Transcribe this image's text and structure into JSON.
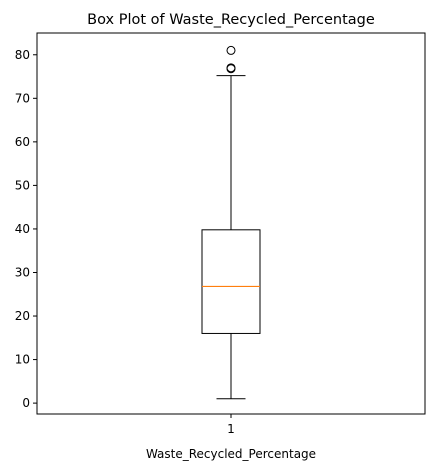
{
  "chart_data": {
    "type": "box",
    "title": "Box Plot of Waste_Recycled_Percentage",
    "xlabel": "Waste_Recycled_Percentage",
    "ylabel": "",
    "categories": [
      "1"
    ],
    "ylim": [
      -2.5,
      85
    ],
    "yticks": [
      0,
      10,
      20,
      30,
      40,
      50,
      60,
      70,
      80
    ],
    "grid": false,
    "series": [
      {
        "category": "1",
        "whisker_low": 1,
        "q1": 16,
        "median": 26.8,
        "q3": 39.8,
        "whisker_high": 75.2,
        "outliers": [
          76.8,
          77.0,
          81.0
        ]
      }
    ],
    "colors": {
      "box": "#000000",
      "median": "#ff7f0e",
      "outlier_edge": "#000000",
      "background": "#ffffff"
    }
  }
}
